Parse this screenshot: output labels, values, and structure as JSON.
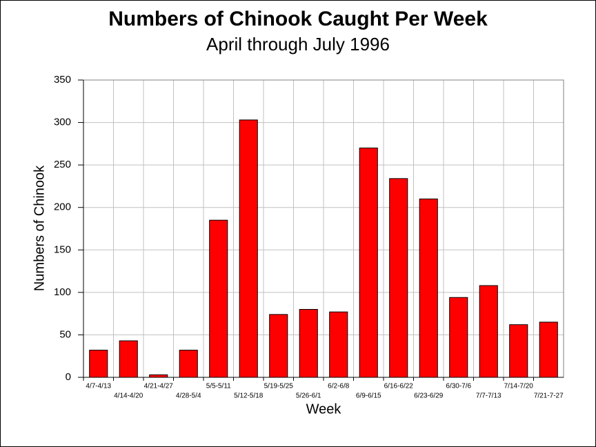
{
  "chart_data": {
    "type": "bar",
    "title": "Numbers of Chinook Caught Per Week",
    "subtitle": "April through July 1996",
    "x_label": "Week",
    "y_label": "Numbers of Chinook",
    "categories": [
      "4/7-4/13",
      "4/14-4/20",
      "4/21-4/27",
      "4/28-5/4",
      "5/5-5/11",
      "5/12-5/18",
      "5/19-5/25",
      "5/26-6/1",
      "6/2-6/8",
      "6/9-6/15",
      "6/16-6/22",
      "6/23-6/29",
      "6/30-7/6",
      "7/7-7/13",
      "7/14-7/20",
      "7/21-7-27"
    ],
    "values": [
      32,
      43,
      3,
      32,
      185,
      303,
      74,
      80,
      77,
      270,
      234,
      210,
      94,
      108,
      62,
      65
    ],
    "color": "#ff0000",
    "ylim": [
      0,
      350
    ],
    "yticks": [
      0,
      50,
      100,
      150,
      200,
      250,
      300,
      350
    ],
    "grid": true
  }
}
